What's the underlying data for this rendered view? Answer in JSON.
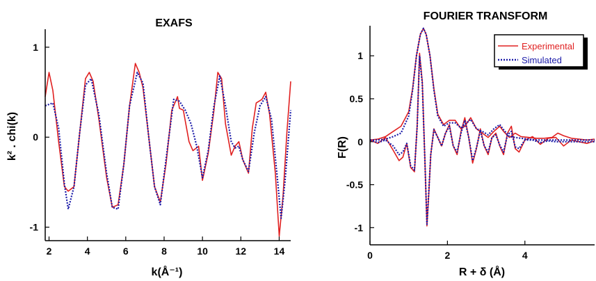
{
  "colors": {
    "experimental": "#e02020",
    "simulated": "#1a1aa8",
    "axis": "#000000"
  },
  "chart_data": [
    {
      "type": "line",
      "title": "EXAFS",
      "xlabel": "k(Å⁻¹)",
      "ylabel": "k² . chi(k)",
      "xlim": [
        1.8,
        14.6
      ],
      "ylim": [
        -1.15,
        1.2
      ],
      "xticks": [
        2,
        4,
        6,
        8,
        10,
        12,
        14
      ],
      "yticks": [
        -1,
        0,
        1
      ],
      "grid": false,
      "series": [
        {
          "style": "solid",
          "color": "#e02020",
          "x": [
            1.8,
            2.0,
            2.2,
            2.5,
            2.8,
            3.0,
            3.3,
            3.6,
            3.9,
            4.1,
            4.3,
            4.6,
            5.0,
            5.3,
            5.6,
            5.9,
            6.2,
            6.5,
            6.7,
            6.9,
            7.2,
            7.5,
            7.8,
            8.1,
            8.4,
            8.7,
            8.8,
            9.0,
            9.3,
            9.5,
            9.8,
            10.0,
            10.3,
            10.6,
            10.8,
            11.0,
            11.2,
            11.5,
            11.7,
            11.9,
            12.1,
            12.4,
            12.6,
            12.8,
            13.1,
            13.3,
            13.5,
            13.8,
            14.0,
            14.2,
            14.4,
            14.6
          ],
          "y": [
            0.45,
            0.72,
            0.52,
            -0.05,
            -0.55,
            -0.6,
            -0.55,
            0.05,
            0.65,
            0.72,
            0.62,
            0.2,
            -0.45,
            -0.78,
            -0.75,
            -0.3,
            0.35,
            0.82,
            0.72,
            0.55,
            0.0,
            -0.55,
            -0.72,
            -0.3,
            0.3,
            0.45,
            0.32,
            0.3,
            -0.05,
            -0.15,
            -0.1,
            -0.48,
            -0.18,
            0.3,
            0.72,
            0.65,
            0.15,
            -0.2,
            -0.1,
            -0.05,
            -0.25,
            -0.4,
            0.1,
            0.38,
            0.42,
            0.5,
            0.25,
            -0.4,
            -1.1,
            -0.65,
            0.05,
            0.62
          ]
        },
        {
          "style": "dotted",
          "color": "#1a1aa8",
          "x": [
            1.8,
            2.2,
            2.5,
            2.8,
            3.0,
            3.3,
            3.6,
            3.9,
            4.2,
            4.6,
            5.0,
            5.3,
            5.6,
            5.9,
            6.2,
            6.6,
            6.9,
            7.2,
            7.5,
            7.8,
            8.1,
            8.5,
            8.8,
            9.1,
            9.4,
            9.7,
            10.0,
            10.3,
            10.6,
            10.9,
            11.2,
            11.5,
            11.7,
            11.9,
            12.1,
            12.4,
            12.7,
            13.0,
            13.3,
            13.6,
            13.9,
            14.1,
            14.3,
            14.6
          ],
          "y": [
            0.35,
            0.38,
            0.1,
            -0.52,
            -0.8,
            -0.55,
            0.05,
            0.58,
            0.65,
            0.25,
            -0.4,
            -0.78,
            -0.8,
            -0.3,
            0.35,
            0.72,
            0.6,
            0.0,
            -0.55,
            -0.75,
            -0.25,
            0.42,
            0.4,
            0.3,
            0.15,
            -0.1,
            -0.45,
            -0.15,
            0.35,
            0.68,
            0.35,
            -0.05,
            -0.12,
            -0.1,
            -0.25,
            -0.38,
            0.05,
            0.35,
            0.45,
            0.2,
            -0.45,
            -0.9,
            -0.5,
            0.3
          ]
        }
      ]
    },
    {
      "type": "line",
      "title": "FOURIER TRANSFORM",
      "xlabel": "R + δ (Å)",
      "ylabel": "F(R)",
      "xlim": [
        0,
        5.8
      ],
      "ylim": [
        -1.2,
        1.35
      ],
      "xticks": [
        0,
        2,
        4
      ],
      "yticks": [
        -1,
        -0.5,
        0,
        0.5,
        1
      ],
      "ytick_labels": [
        "-1",
        "-0.5",
        "0",
        "0.5",
        "1"
      ],
      "grid": false,
      "legend": {
        "position": "top-right",
        "entries": [
          {
            "label": "Experimental",
            "color": "#e02020",
            "style": "solid"
          },
          {
            "label": "Simulated",
            "color": "#1a1aa8",
            "style": "dotted"
          }
        ]
      },
      "series": [
        {
          "style": "solid",
          "color": "#e02020",
          "part": "magnitude",
          "x": [
            0,
            0.2,
            0.4,
            0.6,
            0.8,
            1.0,
            1.1,
            1.2,
            1.3,
            1.38,
            1.45,
            1.55,
            1.65,
            1.75,
            1.9,
            2.05,
            2.2,
            2.35,
            2.45,
            2.6,
            2.75,
            2.9,
            3.05,
            3.2,
            3.35,
            3.45,
            3.6,
            3.75,
            3.9,
            4.1,
            4.3,
            4.5,
            4.7,
            4.85,
            5.0,
            5.2,
            5.4,
            5.6,
            5.8
          ],
          "y": [
            0.02,
            0.03,
            0.06,
            0.12,
            0.18,
            0.35,
            0.62,
            1.0,
            1.25,
            1.32,
            1.25,
            1.0,
            0.62,
            0.32,
            0.2,
            0.25,
            0.25,
            0.15,
            0.18,
            0.28,
            0.15,
            0.1,
            0.05,
            0.12,
            0.18,
            0.12,
            0.05,
            0.1,
            0.06,
            0.05,
            0.04,
            0.04,
            0.05,
            0.1,
            0.07,
            0.04,
            0.03,
            0.02,
            0.03
          ]
        },
        {
          "style": "solid",
          "color": "#e02020",
          "part": "imaginary",
          "x": [
            0,
            0.2,
            0.4,
            0.6,
            0.75,
            0.85,
            0.95,
            1.05,
            1.15,
            1.22,
            1.28,
            1.35,
            1.42,
            1.47,
            1.52,
            1.57,
            1.65,
            1.75,
            1.85,
            1.95,
            2.05,
            2.15,
            2.25,
            2.35,
            2.45,
            2.55,
            2.65,
            2.75,
            2.85,
            2.95,
            3.05,
            3.15,
            3.25,
            3.35,
            3.45,
            3.55,
            3.65,
            3.75,
            3.85,
            4.0,
            4.2,
            4.4,
            4.6,
            4.8,
            5.0,
            5.2,
            5.4,
            5.6,
            5.8
          ],
          "y": [
            0.02,
            -0.02,
            0.05,
            -0.1,
            -0.22,
            -0.18,
            -0.02,
            -0.3,
            -0.35,
            0.2,
            1.03,
            0.7,
            -0.25,
            -0.98,
            -0.6,
            -0.15,
            0.15,
            0.05,
            -0.05,
            0.1,
            0.2,
            -0.05,
            -0.15,
            0.12,
            0.28,
            0.05,
            -0.25,
            -0.08,
            0.15,
            -0.05,
            -0.15,
            0.05,
            0.1,
            -0.05,
            -0.15,
            0.1,
            0.18,
            -0.08,
            -0.12,
            0.02,
            0.06,
            -0.03,
            0.04,
            0.05,
            -0.05,
            0.02,
            0.0,
            -0.02,
            0.01
          ]
        },
        {
          "style": "dotted",
          "color": "#1a1aa8",
          "part": "magnitude",
          "x": [
            0,
            0.2,
            0.4,
            0.6,
            0.8,
            1.0,
            1.1,
            1.2,
            1.3,
            1.38,
            1.45,
            1.55,
            1.65,
            1.75,
            1.9,
            2.05,
            2.2,
            2.35,
            2.45,
            2.6,
            2.75,
            2.9,
            3.05,
            3.2,
            3.35,
            3.45,
            3.6,
            3.75,
            3.9,
            4.1,
            4.3,
            4.5,
            4.7,
            4.85,
            5.0,
            5.2,
            5.4,
            5.6,
            5.8
          ],
          "y": [
            0.02,
            0.02,
            0.03,
            0.06,
            0.1,
            0.3,
            0.6,
            1.0,
            1.25,
            1.32,
            1.25,
            1.0,
            0.6,
            0.3,
            0.18,
            0.22,
            0.22,
            0.16,
            0.2,
            0.26,
            0.15,
            0.12,
            0.08,
            0.15,
            0.2,
            0.14,
            0.06,
            0.05,
            0.04,
            0.03,
            0.02,
            0.02,
            0.02,
            0.02,
            0.02,
            0.02,
            0.02,
            0.02,
            0.02
          ]
        },
        {
          "style": "dotted",
          "color": "#1a1aa8",
          "part": "imaginary",
          "x": [
            0,
            0.2,
            0.4,
            0.6,
            0.75,
            0.85,
            0.95,
            1.05,
            1.15,
            1.22,
            1.28,
            1.35,
            1.42,
            1.47,
            1.52,
            1.57,
            1.65,
            1.75,
            1.85,
            1.95,
            2.05,
            2.15,
            2.25,
            2.35,
            2.45,
            2.55,
            2.65,
            2.75,
            2.85,
            2.95,
            3.05,
            3.15,
            3.25,
            3.35,
            3.45,
            3.55,
            3.65,
            3.75,
            3.85,
            4.0,
            4.2,
            4.4,
            4.6,
            4.8,
            5.0,
            5.2,
            5.4,
            5.6,
            5.8
          ],
          "y": [
            0.02,
            -0.01,
            0.02,
            -0.05,
            -0.15,
            -0.12,
            -0.02,
            -0.28,
            -0.33,
            0.18,
            1.0,
            0.68,
            -0.25,
            -0.96,
            -0.58,
            -0.15,
            0.14,
            0.05,
            -0.05,
            0.1,
            0.18,
            -0.05,
            -0.12,
            0.1,
            0.25,
            0.05,
            -0.22,
            -0.07,
            0.13,
            -0.05,
            -0.12,
            0.05,
            0.08,
            -0.04,
            -0.12,
            0.08,
            0.12,
            -0.06,
            -0.08,
            0.02,
            0.02,
            -0.01,
            0.01,
            0.0,
            0.0,
            0.0,
            0.0,
            0.0,
            0.0
          ]
        }
      ]
    }
  ]
}
